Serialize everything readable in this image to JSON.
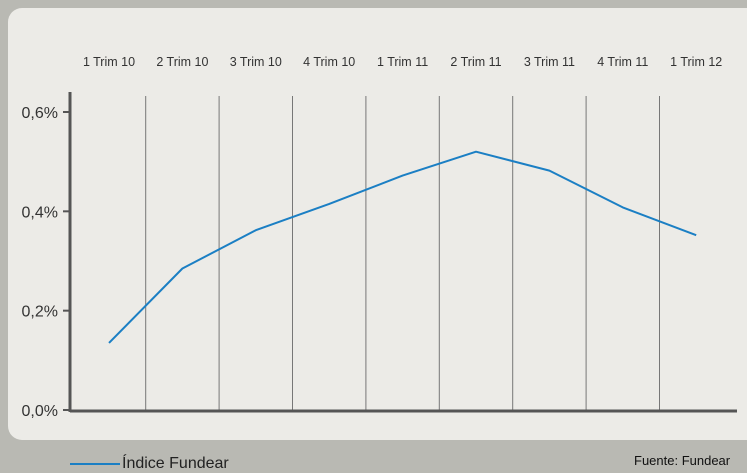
{
  "chart_data": {
    "type": "line",
    "categories": [
      "1 Trim 10",
      "2 Trim 10",
      "3 Trim 10",
      "4 Trim 10",
      "1 Trim 11",
      "2 Trim 11",
      "3 Trim 11",
      "4 Trim 11",
      "1 Trim 12"
    ],
    "series": [
      {
        "name": "Índice Fundear",
        "values": [
          0.135,
          0.285,
          0.362,
          0.415,
          0.472,
          0.52,
          0.482,
          0.408,
          0.352
        ],
        "color": "#1b7fc4"
      }
    ],
    "y_ticks": [
      "0,0%",
      "0,2%",
      "0,4%",
      "0,6%"
    ],
    "ylim": [
      0,
      0.6
    ],
    "grid": "vertical",
    "legend_position": "bottom-left"
  },
  "source": "Fuente:  Fundear",
  "colors": {
    "background": "#b9b9b3",
    "panel": "#ecebe7",
    "axis": "#555555",
    "gridline": "#777777",
    "line": "#1b7fc4"
  }
}
